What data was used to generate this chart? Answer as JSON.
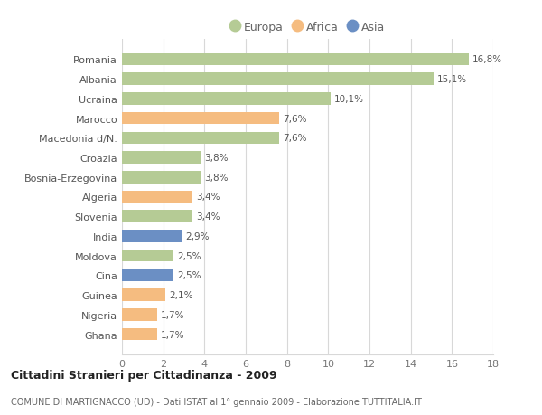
{
  "categories": [
    "Romania",
    "Albania",
    "Ucraina",
    "Marocco",
    "Macedonia d/N.",
    "Croazia",
    "Bosnia-Erzegovina",
    "Algeria",
    "Slovenia",
    "India",
    "Moldova",
    "Cina",
    "Guinea",
    "Nigeria",
    "Ghana"
  ],
  "values": [
    16.8,
    15.1,
    10.1,
    7.6,
    7.6,
    3.8,
    3.8,
    3.4,
    3.4,
    2.9,
    2.5,
    2.5,
    2.1,
    1.7,
    1.7
  ],
  "labels": [
    "16,8%",
    "15,1%",
    "10,1%",
    "7,6%",
    "7,6%",
    "3,8%",
    "3,8%",
    "3,4%",
    "3,4%",
    "2,9%",
    "2,5%",
    "2,5%",
    "2,1%",
    "1,7%",
    "1,7%"
  ],
  "continents": [
    "Europa",
    "Europa",
    "Europa",
    "Africa",
    "Europa",
    "Europa",
    "Europa",
    "Africa",
    "Europa",
    "Asia",
    "Europa",
    "Asia",
    "Africa",
    "Africa",
    "Africa"
  ],
  "colors": {
    "Europa": "#b5cb95",
    "Africa": "#f5bc80",
    "Asia": "#6b8fc4"
  },
  "legend_items": [
    "Europa",
    "Africa",
    "Asia"
  ],
  "xlim": [
    0,
    18
  ],
  "xticks": [
    0,
    2,
    4,
    6,
    8,
    10,
    12,
    14,
    16,
    18
  ],
  "title": "Cittadini Stranieri per Cittadinanza - 2009",
  "subtitle": "COMUNE DI MARTIGNACCO (UD) - Dati ISTAT al 1° gennaio 2009 - Elaborazione TUTTITALIA.IT",
  "bg_color": "#ffffff",
  "grid_color": "#d8d8d8"
}
